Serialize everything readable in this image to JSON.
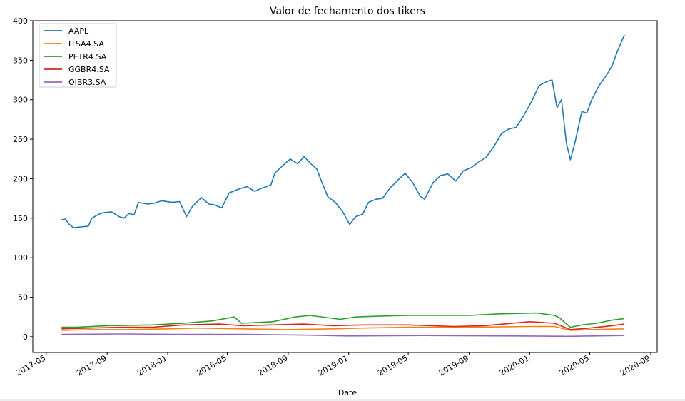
{
  "chart_data": {
    "type": "line",
    "title": "Valor de fechamento dos tikers",
    "xlabel": "Date",
    "ylabel": "",
    "ylim": [
      -20,
      400
    ],
    "y_ticks": [
      0,
      50,
      100,
      150,
      200,
      250,
      300,
      350,
      400
    ],
    "x_range": [
      "2017-04-04",
      "2020-09-14"
    ],
    "x_ticks": [
      "2017-05",
      "2017-09",
      "2018-01",
      "2018-05",
      "2018-09",
      "2019-01",
      "2019-05",
      "2019-09",
      "2020-01",
      "2020-05",
      "2020-09"
    ],
    "grid": false,
    "legend_position": "top-left",
    "colors": {
      "AAPL": "#1f77b4",
      "ITSA4.SA": "#ff7f0e",
      "PETR4.SA": "#2ca02c",
      "GGBR4.SA": "#d62728",
      "OIBR3.SA": "#9467bd"
    },
    "series": [
      {
        "name": "AAPL",
        "points": [
          [
            "2017-06-01",
            148
          ],
          [
            "2017-06-09",
            149
          ],
          [
            "2017-06-15",
            143
          ],
          [
            "2017-06-25",
            138
          ],
          [
            "2017-07-10",
            139
          ],
          [
            "2017-07-25",
            140
          ],
          [
            "2017-08-01",
            150
          ],
          [
            "2017-08-15",
            155
          ],
          [
            "2017-08-25",
            157
          ],
          [
            "2017-09-10",
            158
          ],
          [
            "2017-09-25",
            152
          ],
          [
            "2017-10-05",
            150
          ],
          [
            "2017-10-15",
            156
          ],
          [
            "2017-10-25",
            154
          ],
          [
            "2017-11-03",
            170
          ],
          [
            "2017-11-20",
            168
          ],
          [
            "2017-12-05",
            169
          ],
          [
            "2017-12-20",
            172
          ],
          [
            "2018-01-10",
            170
          ],
          [
            "2018-01-25",
            171
          ],
          [
            "2018-02-08",
            152
          ],
          [
            "2018-02-20",
            165
          ],
          [
            "2018-03-10",
            176
          ],
          [
            "2018-03-25",
            168
          ],
          [
            "2018-04-05",
            167
          ],
          [
            "2018-04-20",
            163
          ],
          [
            "2018-05-05",
            182
          ],
          [
            "2018-05-25",
            187
          ],
          [
            "2018-06-10",
            190
          ],
          [
            "2018-06-25",
            184
          ],
          [
            "2018-07-10",
            188
          ],
          [
            "2018-07-28",
            192
          ],
          [
            "2018-08-05",
            207
          ],
          [
            "2018-08-20",
            216
          ],
          [
            "2018-09-05",
            225
          ],
          [
            "2018-09-20",
            219
          ],
          [
            "2018-10-03",
            228
          ],
          [
            "2018-10-15",
            220
          ],
          [
            "2018-10-29",
            212
          ],
          [
            "2018-11-05",
            200
          ],
          [
            "2018-11-20",
            177
          ],
          [
            "2018-12-05",
            170
          ],
          [
            "2018-12-20",
            158
          ],
          [
            "2019-01-03",
            142
          ],
          [
            "2019-01-15",
            152
          ],
          [
            "2019-01-29",
            155
          ],
          [
            "2019-02-10",
            170
          ],
          [
            "2019-02-25",
            174
          ],
          [
            "2019-03-10",
            175
          ],
          [
            "2019-03-25",
            188
          ],
          [
            "2019-04-10",
            198
          ],
          [
            "2019-04-25",
            207
          ],
          [
            "2019-05-10",
            195
          ],
          [
            "2019-05-25",
            178
          ],
          [
            "2019-06-03",
            174
          ],
          [
            "2019-06-20",
            195
          ],
          [
            "2019-07-05",
            204
          ],
          [
            "2019-07-20",
            206
          ],
          [
            "2019-08-05",
            197
          ],
          [
            "2019-08-20",
            210
          ],
          [
            "2019-09-05",
            214
          ],
          [
            "2019-09-20",
            221
          ],
          [
            "2019-10-05",
            227
          ],
          [
            "2019-10-20",
            240
          ],
          [
            "2019-11-05",
            257
          ],
          [
            "2019-11-20",
            263
          ],
          [
            "2019-12-05",
            265
          ],
          [
            "2019-12-20",
            280
          ],
          [
            "2020-01-05",
            298
          ],
          [
            "2020-01-20",
            318
          ],
          [
            "2020-02-05",
            323
          ],
          [
            "2020-02-15",
            325
          ],
          [
            "2020-02-25",
            290
          ],
          [
            "2020-03-05",
            300
          ],
          [
            "2020-03-15",
            245
          ],
          [
            "2020-03-23",
            224
          ],
          [
            "2020-04-01",
            245
          ],
          [
            "2020-04-15",
            285
          ],
          [
            "2020-04-25",
            283
          ],
          [
            "2020-05-05",
            300
          ],
          [
            "2020-05-20",
            318
          ],
          [
            "2020-06-05",
            332
          ],
          [
            "2020-06-15",
            343
          ],
          [
            "2020-06-25",
            360
          ],
          [
            "2020-07-05",
            375
          ],
          [
            "2020-07-10",
            382
          ]
        ]
      },
      {
        "name": "ITSA4.SA",
        "points": [
          [
            "2017-06-01",
            8
          ],
          [
            "2017-08-01",
            9
          ],
          [
            "2017-10-01",
            9
          ],
          [
            "2018-01-01",
            10
          ],
          [
            "2018-03-01",
            11
          ],
          [
            "2018-06-01",
            10
          ],
          [
            "2018-09-01",
            9
          ],
          [
            "2018-12-01",
            10
          ],
          [
            "2019-02-01",
            11
          ],
          [
            "2019-05-01",
            12
          ],
          [
            "2019-09-01",
            12
          ],
          [
            "2020-01-01",
            13
          ],
          [
            "2020-02-20",
            13
          ],
          [
            "2020-03-23",
            8
          ],
          [
            "2020-05-01",
            9
          ],
          [
            "2020-07-10",
            10
          ]
        ]
      },
      {
        "name": "PETR4.SA",
        "points": [
          [
            "2017-06-01",
            12
          ],
          [
            "2017-07-01",
            12
          ],
          [
            "2017-09-01",
            14
          ],
          [
            "2017-12-01",
            15
          ],
          [
            "2018-02-01",
            17
          ],
          [
            "2018-04-01",
            20
          ],
          [
            "2018-05-15",
            25
          ],
          [
            "2018-05-30",
            17
          ],
          [
            "2018-08-01",
            19
          ],
          [
            "2018-09-15",
            25
          ],
          [
            "2018-10-15",
            27
          ],
          [
            "2018-12-15",
            22
          ],
          [
            "2019-01-15",
            25
          ],
          [
            "2019-03-01",
            26
          ],
          [
            "2019-05-01",
            27
          ],
          [
            "2019-07-01",
            27
          ],
          [
            "2019-09-01",
            27
          ],
          [
            "2019-11-01",
            29
          ],
          [
            "2020-01-15",
            30
          ],
          [
            "2020-02-20",
            27
          ],
          [
            "2020-03-01",
            24
          ],
          [
            "2020-03-23",
            12
          ],
          [
            "2020-04-15",
            15
          ],
          [
            "2020-05-15",
            17
          ],
          [
            "2020-06-15",
            21
          ],
          [
            "2020-07-10",
            23
          ]
        ]
      },
      {
        "name": "GGBR4.SA",
        "points": [
          [
            "2017-06-01",
            10
          ],
          [
            "2017-08-01",
            11
          ],
          [
            "2017-10-01",
            12
          ],
          [
            "2017-12-01",
            12
          ],
          [
            "2018-02-01",
            15
          ],
          [
            "2018-04-15",
            16
          ],
          [
            "2018-06-01",
            14
          ],
          [
            "2018-08-01",
            15
          ],
          [
            "2018-10-01",
            16
          ],
          [
            "2018-12-01",
            14
          ],
          [
            "2019-02-01",
            15
          ],
          [
            "2019-05-01",
            15
          ],
          [
            "2019-08-01",
            13
          ],
          [
            "2019-10-01",
            14
          ],
          [
            "2020-01-01",
            19
          ],
          [
            "2020-02-20",
            17
          ],
          [
            "2020-03-23",
            9
          ],
          [
            "2020-05-01",
            11
          ],
          [
            "2020-06-15",
            14
          ],
          [
            "2020-07-10",
            16
          ]
        ]
      },
      {
        "name": "OIBR3.SA",
        "points": [
          [
            "2017-06-01",
            3
          ],
          [
            "2017-10-01",
            3.5
          ],
          [
            "2018-01-15",
            3
          ],
          [
            "2018-06-01",
            3
          ],
          [
            "2018-10-01",
            2
          ],
          [
            "2019-01-01",
            1
          ],
          [
            "2019-06-01",
            1.5
          ],
          [
            "2019-12-01",
            1
          ],
          [
            "2020-03-15",
            0.5
          ],
          [
            "2020-07-10",
            1.5
          ]
        ]
      }
    ]
  }
}
